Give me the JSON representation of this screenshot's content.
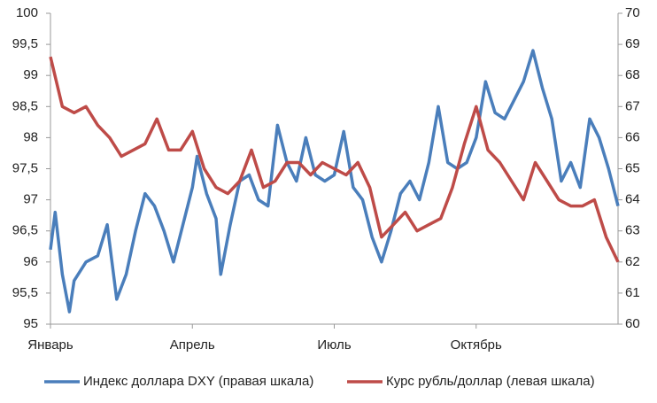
{
  "chart_data": {
    "type": "line",
    "xlim": [
      0,
      12
    ],
    "xticks": [
      {
        "value": 0,
        "label": "Январь"
      },
      {
        "value": 3,
        "label": "Апрель"
      },
      {
        "value": 6,
        "label": "Июль"
      },
      {
        "value": 9,
        "label": "Октябрь"
      }
    ],
    "ylim": [
      95,
      100
    ],
    "yticks": [
      95,
      {
        "value": 95.5,
        "label": "95,5"
      },
      96,
      {
        "value": 96.5,
        "label": "96,5"
      },
      97,
      {
        "value": 97.5,
        "label": "97,5"
      },
      98,
      {
        "value": 98.5,
        "label": "98,5"
      },
      99,
      {
        "value": 99.5,
        "label": "99,5"
      },
      100
    ],
    "y2lim": [
      60,
      70
    ],
    "y2ticks": [
      60,
      61,
      62,
      63,
      64,
      65,
      66,
      67,
      68,
      69,
      70
    ],
    "series": [
      {
        "name": "Индекс доллара DXY (правая шкала)",
        "color": "#4a7ebb",
        "axis": "y2",
        "x": [
          0,
          0.1,
          0.25,
          0.4,
          0.5,
          0.75,
          1.0,
          1.2,
          1.4,
          1.6,
          1.8,
          2.0,
          2.2,
          2.4,
          2.6,
          2.8,
          3.0,
          3.1,
          3.3,
          3.5,
          3.6,
          3.8,
          4.0,
          4.2,
          4.4,
          4.6,
          4.8,
          5.0,
          5.2,
          5.4,
          5.6,
          5.8,
          6.0,
          6.2,
          6.4,
          6.6,
          6.8,
          7.0,
          7.2,
          7.4,
          7.6,
          7.8,
          8.0,
          8.2,
          8.4,
          8.6,
          8.8,
          9.0,
          9.2,
          9.4,
          9.6,
          9.8,
          10.0,
          10.2,
          10.4,
          10.6,
          10.8,
          11.0,
          11.2,
          11.4,
          11.6,
          11.8,
          12.0
        ],
        "values": [
          62.4,
          63.6,
          61.6,
          60.4,
          61.4,
          62.0,
          62.2,
          63.2,
          60.8,
          61.6,
          63.0,
          64.2,
          63.8,
          63.0,
          62.0,
          63.2,
          64.4,
          65.4,
          64.2,
          63.4,
          61.6,
          63.2,
          64.6,
          64.8,
          64.0,
          63.8,
          66.4,
          65.2,
          64.6,
          66.0,
          64.8,
          64.6,
          64.8,
          66.2,
          64.4,
          64.0,
          62.8,
          62.0,
          63.0,
          64.2,
          64.6,
          64.0,
          65.2,
          67.0,
          65.2,
          65.0,
          65.2,
          66.0,
          67.8,
          66.8,
          66.6,
          67.2,
          67.8,
          68.8,
          67.6,
          66.6,
          64.6,
          65.2,
          64.4,
          66.6,
          66.0,
          65.0,
          63.8
        ]
      },
      {
        "name": "Курс рубль/доллар (левая шкала)",
        "color": "#be4b48",
        "x": [
          0,
          0.25,
          0.5,
          0.75,
          1.0,
          1.25,
          1.5,
          1.75,
          2.0,
          2.25,
          2.5,
          2.75,
          3.0,
          3.25,
          3.5,
          3.75,
          4.0,
          4.25,
          4.5,
          4.75,
          5.0,
          5.25,
          5.5,
          5.75,
          6.0,
          6.25,
          6.5,
          6.75,
          7.0,
          7.25,
          7.5,
          7.75,
          8.0,
          8.25,
          8.5,
          8.75,
          9.0,
          9.25,
          9.5,
          9.75,
          10.0,
          10.25,
          10.5,
          10.75,
          11.0,
          11.25,
          11.5,
          11.75,
          12.0
        ],
        "values": [
          99.3,
          98.5,
          98.4,
          98.5,
          98.2,
          98.0,
          97.7,
          97.8,
          97.9,
          98.3,
          97.8,
          97.8,
          98.1,
          97.5,
          97.2,
          97.1,
          97.3,
          97.8,
          97.2,
          97.3,
          97.6,
          97.6,
          97.4,
          97.6,
          97.5,
          97.4,
          97.6,
          97.2,
          96.4,
          96.6,
          96.8,
          96.5,
          96.6,
          96.7,
          97.2,
          97.9,
          98.5,
          97.8,
          97.6,
          97.3,
          97.0,
          97.6,
          97.3,
          97.0,
          96.9,
          96.9,
          97.0,
          96.4,
          96.0
        ]
      }
    ]
  }
}
